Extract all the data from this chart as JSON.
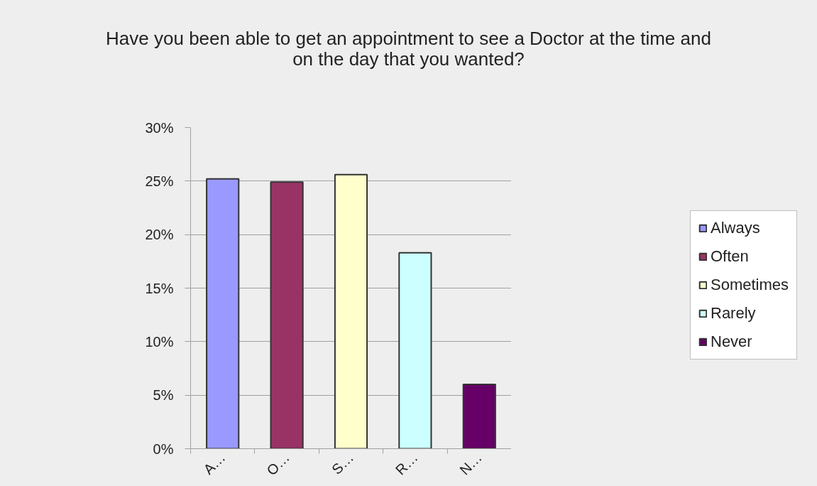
{
  "chart_data": {
    "type": "bar",
    "title": "Have you been able to get an appointment to see a Doctor at the time and on the day that you wanted?",
    "categories": [
      "A…",
      "O…",
      "S…",
      "R…",
      "N…"
    ],
    "series": [
      {
        "name": "Always",
        "color": "#9999ff",
        "values": [
          25.2,
          null,
          null,
          null,
          null
        ]
      },
      {
        "name": "Often",
        "color": "#993366",
        "values": [
          null,
          24.9,
          null,
          null,
          null
        ]
      },
      {
        "name": "Sometimes",
        "color": "#ffffcc",
        "values": [
          null,
          null,
          25.6,
          null,
          null
        ]
      },
      {
        "name": "Rarely",
        "color": "#ccffff",
        "values": [
          null,
          null,
          null,
          18.3,
          null
        ]
      },
      {
        "name": "Never",
        "color": "#660066",
        "values": [
          null,
          null,
          null,
          null,
          6.0
        ]
      }
    ],
    "ylim": [
      0,
      30
    ],
    "yticks": [
      {
        "value": 0,
        "label": "0%"
      },
      {
        "value": 5,
        "label": "5%"
      },
      {
        "value": 10,
        "label": "10%"
      },
      {
        "value": 15,
        "label": "15%"
      },
      {
        "value": 20,
        "label": "20%"
      },
      {
        "value": 25,
        "label": "25%"
      },
      {
        "value": 30,
        "label": "30%"
      }
    ],
    "grid": "y",
    "legend": "right"
  }
}
